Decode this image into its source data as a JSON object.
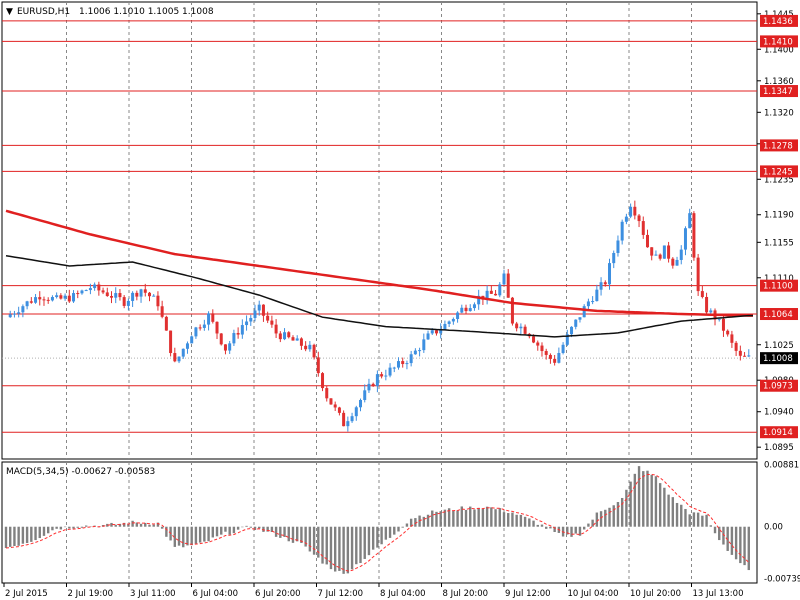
{
  "header": {
    "menu_glyph": "▼",
    "symbol_tf": "EURUSD,H1",
    "ohlc": "1.1006 1.1010 1.1005 1.1008"
  },
  "macd_header": "MACD(5,34,5) -0.00627 -0.00583",
  "colors": {
    "background": "#ffffff",
    "bull": "#3d8fe0",
    "bear": "#e03030",
    "level_line": "#e02020",
    "ma_red": "#e02020",
    "ma_black": "#111111",
    "grid": "#888888",
    "hist": "#808080",
    "signal": "#ff3030"
  },
  "price_axis": {
    "ticks": [
      "1.1445",
      "1.1400",
      "1.1360",
      "1.1320",
      "1.1280",
      "1.1235",
      "1.1190",
      "1.1155",
      "1.1110",
      "1.1025",
      "1.0980",
      "1.0940",
      "1.0895"
    ],
    "levels": [
      "1.1436",
      "1.1410",
      "1.1347",
      "1.1278",
      "1.1245",
      "1.1100",
      "1.1064",
      "1.0973",
      "1.0914"
    ],
    "current": "1.1008"
  },
  "macd_axis": {
    "ticks": [
      "0.00881",
      "0.00",
      "-0.00739"
    ]
  },
  "time_axis": {
    "labels": [
      "2 Jul 2015",
      "2 Jul 19:00",
      "3 Jul 11:00",
      "6 Jul 04:00",
      "6 Jul 20:00",
      "7 Jul 12:00",
      "8 Jul 04:00",
      "8 Jul 20:00",
      "9 Jul 12:00",
      "10 Jul 04:00",
      "10 Jul 20:00",
      "13 Jul 13:00"
    ]
  },
  "chart_data": {
    "type": "candlestick",
    "symbol": "EURUSD",
    "timeframe": "H1",
    "ylim": [
      1.088,
      1.146
    ],
    "horizontal_levels": [
      1.1436,
      1.141,
      1.1347,
      1.1278,
      1.1245,
      1.11,
      1.1064,
      1.0973,
      1.0914
    ],
    "current_price": 1.1008,
    "close_path": [
      [
        0,
        1.106
      ],
      [
        4,
        1.1075
      ],
      [
        8,
        1.1088
      ],
      [
        12,
        1.1082
      ],
      [
        16,
        1.1086
      ],
      [
        20,
        1.1098
      ],
      [
        24,
        1.109
      ],
      [
        28,
        1.108
      ],
      [
        32,
        1.1096
      ],
      [
        36,
        1.1078
      ],
      [
        40,
        1.1
      ],
      [
        44,
        1.104
      ],
      [
        48,
        1.1062
      ],
      [
        52,
        1.102
      ],
      [
        56,
        1.105
      ],
      [
        60,
        1.107
      ],
      [
        64,
        1.104
      ],
      [
        68,
        1.103
      ],
      [
        72,
        1.102
      ],
      [
        76,
        1.096
      ],
      [
        80,
        1.0925
      ],
      [
        84,
        1.0955
      ],
      [
        88,
        1.0985
      ],
      [
        92,
        1.0995
      ],
      [
        96,
        1.101
      ],
      [
        100,
        1.1035
      ],
      [
        104,
        1.105
      ],
      [
        108,
        1.107
      ],
      [
        112,
        1.1085
      ],
      [
        116,
        1.109
      ],
      [
        118,
        1.111
      ],
      [
        120,
        1.1055
      ],
      [
        124,
        1.104
      ],
      [
        128,
        1.101
      ],
      [
        130,
        1.1005
      ],
      [
        134,
        1.1045
      ],
      [
        138,
        1.108
      ],
      [
        142,
        1.1105
      ],
      [
        146,
        1.118
      ],
      [
        148,
        1.1205
      ],
      [
        150,
        1.1185
      ],
      [
        152,
        1.115
      ],
      [
        154,
        1.1135
      ],
      [
        156,
        1.1145
      ],
      [
        158,
        1.113
      ],
      [
        160,
        1.1145
      ],
      [
        162,
        1.119
      ],
      [
        164,
        1.109
      ],
      [
        166,
        1.107
      ],
      [
        168,
        1.106
      ],
      [
        170,
        1.1045
      ],
      [
        172,
        1.1025
      ],
      [
        174,
        1.1008
      ]
    ],
    "series": [
      {
        "name": "MA slow",
        "color": "#e02020",
        "points": [
          [
            0,
            1.1195
          ],
          [
            20,
            1.1165
          ],
          [
            40,
            1.114
          ],
          [
            60,
            1.1125
          ],
          [
            80,
            1.111
          ],
          [
            100,
            1.1095
          ],
          [
            120,
            1.1078
          ],
          [
            140,
            1.1068
          ],
          [
            160,
            1.1064
          ],
          [
            176,
            1.1062
          ]
        ]
      },
      {
        "name": "MA fast",
        "color": "#111111",
        "points": [
          [
            0,
            1.1138
          ],
          [
            15,
            1.1125
          ],
          [
            30,
            1.113
          ],
          [
            45,
            1.111
          ],
          [
            60,
            1.1088
          ],
          [
            75,
            1.106
          ],
          [
            90,
            1.1048
          ],
          [
            110,
            1.1042
          ],
          [
            130,
            1.1035
          ],
          [
            145,
            1.104
          ],
          [
            160,
            1.1055
          ],
          [
            176,
            1.1062
          ]
        ]
      }
    ],
    "macd": {
      "ylim": [
        -0.008,
        0.0092
      ],
      "histogram_path": [
        [
          0,
          -0.003
        ],
        [
          6,
          -0.002
        ],
        [
          12,
          -0.0002
        ],
        [
          18,
          0.0001
        ],
        [
          24,
          0.0002
        ],
        [
          30,
          0.0006
        ],
        [
          36,
          0.0005
        ],
        [
          40,
          -0.003
        ],
        [
          46,
          -0.0025
        ],
        [
          52,
          -0.001
        ],
        [
          58,
          0.0
        ],
        [
          64,
          -0.0012
        ],
        [
          70,
          -0.0025
        ],
        [
          76,
          -0.0055
        ],
        [
          80,
          -0.0068
        ],
        [
          86,
          -0.004
        ],
        [
          92,
          -0.001
        ],
        [
          96,
          0.0012
        ],
        [
          102,
          0.0022
        ],
        [
          108,
          0.0026
        ],
        [
          114,
          0.0028
        ],
        [
          120,
          0.002
        ],
        [
          126,
          0.0005
        ],
        [
          132,
          -0.0015
        ],
        [
          136,
          -0.001
        ],
        [
          140,
          0.0018
        ],
        [
          146,
          0.004
        ],
        [
          150,
          0.0085
        ],
        [
          154,
          0.007
        ],
        [
          158,
          0.004
        ],
        [
          162,
          0.002
        ],
        [
          166,
          0.0015
        ],
        [
          168,
          -0.001
        ],
        [
          172,
          -0.004
        ],
        [
          176,
          -0.0063
        ]
      ]
    }
  }
}
